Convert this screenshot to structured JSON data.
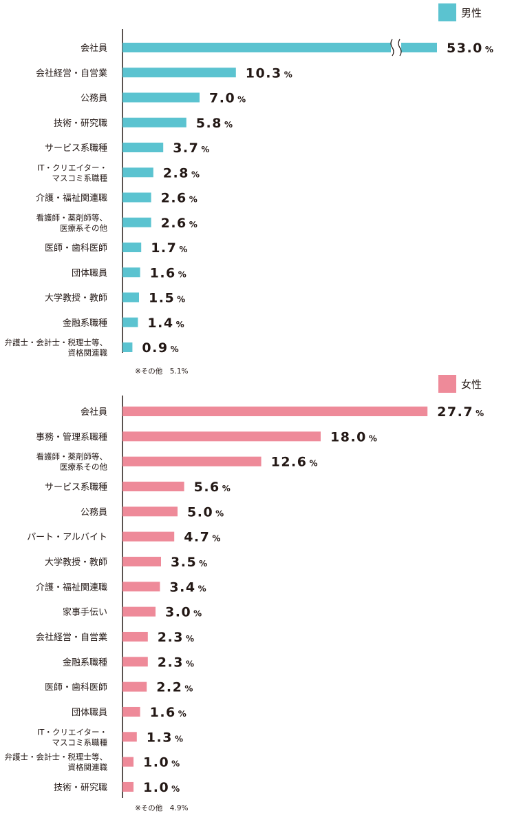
{
  "chart_data": [
    {
      "type": "bar",
      "orientation": "horizontal",
      "legend": "男性",
      "color": "#5bc3d0",
      "unit": "%",
      "axis_break_on": "会社員",
      "categories": [
        "会社員",
        "会社経営・自営業",
        "公務員",
        "技術・研究職",
        "サービス系職種",
        "IT・クリエイター・\nマスコミ系職種",
        "介護・福祉関連職",
        "看護師・薬剤師等、\n医療系その他",
        "医師・歯科医師",
        "団体職員",
        "大学教授・教師",
        "金融系職種",
        "弁護士・会計士・税理士等、\n資格関連職"
      ],
      "values": [
        53.0,
        10.3,
        7.0,
        5.8,
        3.7,
        2.8,
        2.6,
        2.6,
        1.7,
        1.6,
        1.5,
        1.4,
        0.9
      ],
      "labels": [
        "53.0",
        "10.3",
        "7.0",
        "5.8",
        "3.7",
        "2.8",
        "2.6",
        "2.6",
        "1.7",
        "1.6",
        "1.5",
        "1.4",
        "0.9"
      ],
      "note": "※その他　5.1%"
    },
    {
      "type": "bar",
      "orientation": "horizontal",
      "legend": "女性",
      "color": "#ee8a99",
      "unit": "%",
      "categories": [
        "会社員",
        "事務・管理系職種",
        "看護師・薬剤師等、\n医療系その他",
        "サービス系職種",
        "公務員",
        "パート・アルバイト",
        "大学教授・教師",
        "介護・福祉関連職",
        "家事手伝い",
        "会社経営・自営業",
        "金融系職種",
        "医師・歯科医師",
        "団体職員",
        "IT・クリエイター・\nマスコミ系職種",
        "弁護士・会計士・税理士等、\n資格関連職",
        "技術・研究職"
      ],
      "values": [
        27.7,
        18.0,
        12.6,
        5.6,
        5.0,
        4.7,
        3.5,
        3.4,
        3.0,
        2.3,
        2.3,
        2.2,
        1.6,
        1.3,
        1.0,
        1.0
      ],
      "labels": [
        "27.7",
        "18.0",
        "12.6",
        "5.6",
        "5.0",
        "4.7",
        "3.5",
        "3.4",
        "3.0",
        "2.3",
        "2.3",
        "2.2",
        "1.6",
        "1.3",
        "1.0",
        "1.0"
      ],
      "note": "※その他　4.9%"
    }
  ]
}
